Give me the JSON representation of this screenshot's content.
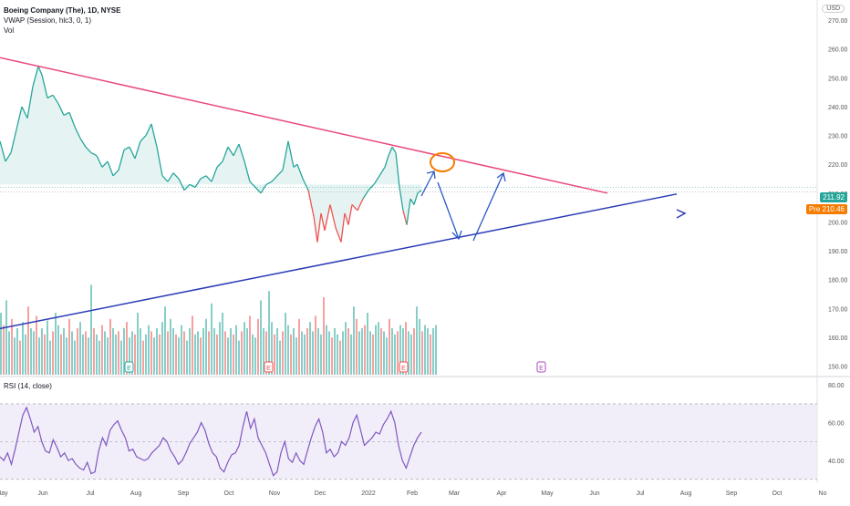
{
  "legend": {
    "symbol": "Boeing Company (The), 1D, NYSE",
    "vwap": "VWAP (Session, hlc3, 0, 1)",
    "vol": "Vol"
  },
  "rsi_legend": "RSI (14, close)",
  "currency": "USD",
  "price_tags": {
    "last": {
      "label": "211.92",
      "color": "#26a69a"
    },
    "pre": {
      "prefix": "Pre",
      "label": "210.46",
      "color": "#f57c00"
    }
  },
  "colors": {
    "up": "#26a69a",
    "down": "#ef5350",
    "resistance_line": "#e84a7a",
    "support_line": "#2b3bb5",
    "projection_arrows": "#2b57c7",
    "highlight_circle": "#f57c00",
    "rsi_line": "#7e57c2",
    "rsi_band": "#ede7f6"
  },
  "chart_data": [
    {
      "type": "line",
      "title": "Boeing Company (The), 1D, NYSE",
      "y_axis_ticks": [
        "270.00",
        "260.00",
        "250.00",
        "240.00",
        "230.00",
        "220.00",
        "210.00",
        "200.00",
        "190.00",
        "180.00",
        "170.00",
        "160.00",
        "150.00"
      ],
      "ylim": [
        147,
        277
      ],
      "x_axis_ticks": [
        "May",
        "Jun",
        "Jul",
        "Aug",
        "Sep",
        "Oct",
        "Nov",
        "Dec",
        "2022",
        "Feb",
        "Mar",
        "Apr",
        "May",
        "Jun",
        "Jul",
        "Aug",
        "Sep",
        "Oct",
        "No"
      ],
      "series": [
        {
          "name": "Close",
          "x": [
            0,
            6,
            12,
            18,
            24,
            30,
            36,
            42,
            46,
            52,
            58,
            64,
            70,
            76,
            82,
            88,
            94,
            100,
            106,
            112,
            118,
            124,
            130,
            136,
            142,
            148,
            154,
            160,
            166,
            172,
            178,
            184,
            190,
            196,
            202,
            208,
            214,
            220,
            226,
            232,
            238,
            244,
            250,
            256,
            262,
            268,
            274,
            280,
            286,
            292,
            298,
            304,
            310,
            316,
            322,
            326,
            332,
            338,
            344,
            348,
            352,
            356,
            362,
            368,
            374,
            378,
            382,
            386,
            392,
            398,
            404,
            410,
            416,
            422,
            426,
            430,
            434,
            438,
            442,
            446,
            450,
            454,
            458,
            462
          ],
          "values": [
            228,
            221,
            224,
            232,
            240,
            236,
            247,
            254,
            251,
            243,
            244,
            241,
            237,
            238,
            233,
            229,
            226,
            224,
            223,
            219,
            221,
            216,
            218,
            225,
            226,
            222,
            228,
            230,
            234,
            226,
            216,
            214,
            217,
            215,
            211,
            213,
            212,
            215,
            216,
            214,
            219,
            221,
            226,
            223,
            227,
            221,
            214,
            212,
            210,
            213,
            214,
            216,
            218,
            228,
            219,
            220,
            215,
            211,
            202,
            193,
            203,
            197,
            206,
            198,
            193,
            203,
            199,
            206,
            204,
            208,
            211,
            213,
            216,
            219,
            223,
            226,
            224,
            212,
            204,
            199,
            208,
            206,
            210,
            211
          ]
        }
      ],
      "trendlines": [
        {
          "name": "resistance",
          "from": [
            0,
            257
          ],
          "to": [
            666,
            210
          ]
        },
        {
          "name": "support",
          "from": [
            0,
            163
          ],
          "to": [
            750,
            210
          ]
        }
      ]
    },
    {
      "type": "bar",
      "title": "Vol",
      "values": [
        40,
        32,
        48,
        28,
        36,
        24,
        30,
        22,
        34,
        26,
        44,
        30,
        28,
        38,
        24,
        30,
        26,
        35,
        22,
        28,
        40,
        32,
        26,
        30,
        24,
        36,
        28,
        22,
        30,
        34,
        26,
        28,
        24,
        58,
        30,
        26,
        22,
        32,
        28,
        24,
        36,
        30,
        26,
        28,
        22,
        30,
        34,
        24,
        28,
        26,
        40,
        30,
        22,
        26,
        32,
        28,
        24,
        30,
        26,
        34,
        44,
        28,
        36,
        30,
        26,
        24,
        32,
        28,
        22,
        30,
        38,
        26,
        28,
        24,
        30,
        36,
        28,
        46,
        30,
        26,
        34,
        40,
        28,
        24,
        30,
        26,
        32,
        22,
        28,
        34,
        30,
        38,
        26,
        24,
        36,
        48,
        30,
        28,
        54,
        34,
        26,
        30,
        22,
        28,
        40,
        32,
        26,
        30,
        24,
        36,
        28,
        26,
        30,
        34,
        28,
        38,
        30,
        26,
        50,
        32,
        28,
        24,
        30,
        26,
        22,
        28,
        34,
        30,
        26,
        44,
        36,
        28,
        30,
        32,
        40,
        28,
        26,
        32,
        34,
        30,
        28,
        24,
        36,
        30,
        26,
        28,
        32,
        30,
        34,
        28,
        26,
        30,
        44,
        36,
        28,
        32,
        30,
        26,
        30,
        32
      ],
      "earnings_markers": [
        "E",
        "E",
        "E",
        "E"
      ]
    },
    {
      "type": "line",
      "title": "RSI (14, close)",
      "y_axis_ticks": [
        "80.00",
        "60.00",
        "40.00"
      ],
      "ylim": [
        28,
        82
      ],
      "bands": [
        30,
        70
      ],
      "series": [
        {
          "name": "RSI",
          "values": [
            42,
            40,
            44,
            38,
            46,
            55,
            64,
            68,
            62,
            55,
            58,
            50,
            45,
            44,
            51,
            47,
            42,
            44,
            40,
            41,
            38,
            36,
            35,
            39,
            33,
            34,
            45,
            52,
            48,
            56,
            59,
            61,
            56,
            52,
            45,
            46,
            42,
            41,
            40,
            41,
            44,
            46,
            48,
            52,
            50,
            45,
            42,
            38,
            40,
            44,
            49,
            52,
            55,
            60,
            56,
            49,
            44,
            42,
            36,
            34,
            39,
            43,
            44,
            48,
            58,
            66,
            57,
            62,
            52,
            48,
            44,
            38,
            32,
            34,
            44,
            50,
            41,
            39,
            44,
            40,
            38,
            45,
            52,
            58,
            62,
            55,
            44,
            46,
            42,
            44,
            50,
            48,
            52,
            60,
            64,
            56,
            48,
            50,
            52,
            55,
            54,
            59,
            62,
            66,
            60,
            48,
            40,
            36,
            42,
            48,
            52,
            55
          ]
        }
      ]
    }
  ]
}
